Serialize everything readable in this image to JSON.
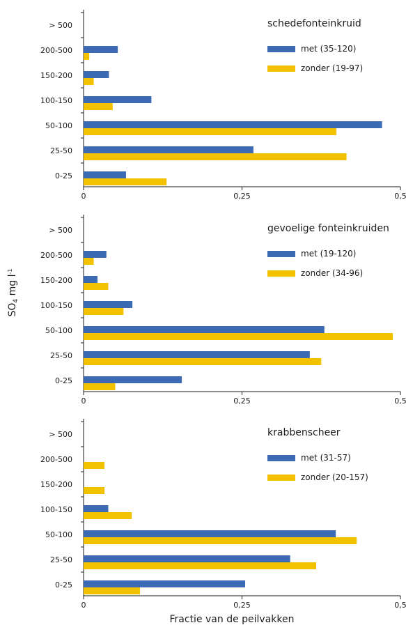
{
  "figure": {
    "ylabel": "SO",
    "ylabel_sub": "4",
    "ylabel_unit": " mg l",
    "ylabel_sup": "-1",
    "xlabel": "Fractie van de peilvakken"
  },
  "chart_data": [
    {
      "type": "bar",
      "orientation": "horizontal",
      "title": "schedefonteinkruid",
      "categories": [
        "0-25",
        "25-50",
        "50-100",
        "100-150",
        "150-200",
        "200-500",
        "> 500"
      ],
      "series": [
        {
          "name": "met (35-120)",
          "color": "#3d6bb3",
          "values": [
            0.067,
            0.268,
            0.471,
            0.107,
            0.04,
            0.054,
            0.0
          ]
        },
        {
          "name": "zonder (19-97)",
          "color": "#f2c200",
          "values": [
            0.131,
            0.415,
            0.399,
            0.046,
            0.016,
            0.009,
            0.0
          ]
        }
      ],
      "xlim": [
        0,
        0.5
      ],
      "xticks": [
        0,
        0.25,
        0.5
      ],
      "xtick_labels": [
        "0",
        "0,25",
        "0,5"
      ],
      "legend_position": "top-right"
    },
    {
      "type": "bar",
      "orientation": "horizontal",
      "title": "gevoelige fonteinkruiden",
      "categories": [
        "0-25",
        "25-50",
        "50-100",
        "100-150",
        "150-200",
        "200-500",
        "> 500"
      ],
      "series": [
        {
          "name": "met (19-120)",
          "color": "#3d6bb3",
          "values": [
            0.155,
            0.357,
            0.38,
            0.077,
            0.022,
            0.036,
            0.0
          ]
        },
        {
          "name": "zonder (34-96)",
          "color": "#f2c200",
          "values": [
            0.05,
            0.375,
            0.488,
            0.063,
            0.039,
            0.016,
            0.0
          ]
        }
      ],
      "xlim": [
        0,
        0.5
      ],
      "xticks": [
        0,
        0.25,
        0.5
      ],
      "xtick_labels": [
        "0",
        "0,25",
        "0,5"
      ],
      "legend_position": "top-right"
    },
    {
      "type": "bar",
      "orientation": "horizontal",
      "title": "krabbenscheer",
      "categories": [
        "0-25",
        "25-50",
        "50-100",
        "100-150",
        "150-200",
        "200-500",
        "> 500"
      ],
      "series": [
        {
          "name": "met (31-57)",
          "color": "#3d6bb3",
          "values": [
            0.255,
            0.326,
            0.398,
            0.039,
            0.0,
            0.0,
            0.0
          ]
        },
        {
          "name": "zonder (20-157)",
          "color": "#f2c200",
          "values": [
            0.089,
            0.367,
            0.431,
            0.076,
            0.033,
            0.033,
            0.0
          ]
        }
      ],
      "xlim": [
        0,
        0.5
      ],
      "xticks": [
        0,
        0.25,
        0.5
      ],
      "xtick_labels": [
        "0",
        "0,25",
        "0,5"
      ],
      "legend_position": "top-right"
    }
  ]
}
